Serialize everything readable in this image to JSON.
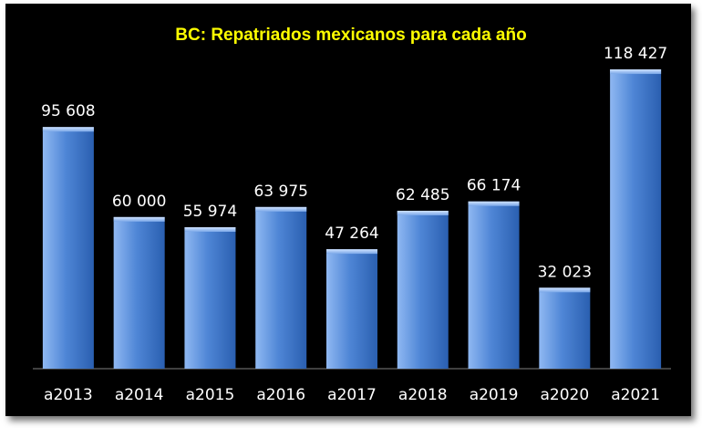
{
  "chart_data": {
    "type": "bar",
    "title": "BC: Repatriados mexicanos para cada año",
    "xlabel": "",
    "ylabel": "",
    "categories": [
      "a2013",
      "a2014",
      "a2015",
      "a2016",
      "a2017",
      "a2018",
      "a2019",
      "a2020",
      "a2021"
    ],
    "values": [
      95608,
      60000,
      55974,
      63975,
      47264,
      62485,
      66174,
      32023,
      118427
    ],
    "value_labels": [
      "95 608",
      "60 000",
      "55 974",
      "63 975",
      "47 264",
      "62 485",
      "66 174",
      "32 023",
      "118 427"
    ],
    "ylim": [
      0,
      130000
    ],
    "grid": false,
    "legend": "none",
    "colors": {
      "background": "#000000",
      "bar": "#4f86d6",
      "bar_light": "#8fb8f2",
      "bar_dark": "#2a5fb0",
      "title": "#ffff00",
      "text": "#ffffff"
    }
  }
}
